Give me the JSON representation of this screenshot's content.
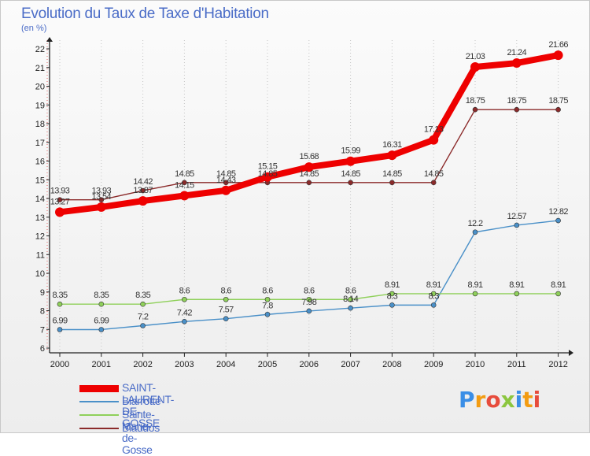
{
  "title": "Evolution du Taux de Taxe d'Habitation",
  "subtitle": "(en %)",
  "logo": {
    "text": "Proxiti",
    "letters": [
      "P",
      "r",
      "o",
      "x",
      "i",
      "t",
      "i"
    ],
    "colors": [
      "#3a8ee6",
      "#f39c12",
      "#e74c3c",
      "#8cc63f",
      "#3a8ee6",
      "#f39c12",
      "#e74c3c"
    ]
  },
  "chart_data": {
    "type": "line",
    "title": "Evolution du Taux de Taxe d'Habitation",
    "ylabel": "(en %)",
    "xlabel": "",
    "ylim": [
      6,
      22
    ],
    "yticks": [
      "6",
      "7",
      "8",
      "9",
      "10",
      "11",
      "12",
      "13",
      "14",
      "15",
      "16",
      "17",
      "18",
      "19",
      "20",
      "21",
      "22"
    ],
    "x": [
      "2000",
      "2001",
      "2002",
      "2003",
      "2004",
      "2005",
      "2006",
      "2007",
      "2008",
      "2009",
      "2010",
      "2011",
      "2012"
    ],
    "grid": "vertical dotted",
    "legend_position": "bottom-left",
    "series": [
      {
        "name": "SAINT-LAURENT-DE-GOSSE",
        "color": "#ee0000",
        "thick": true,
        "values": [
          13.27,
          13.54,
          13.87,
          14.15,
          14.43,
          15.15,
          15.68,
          15.99,
          16.31,
          17.13,
          21.03,
          21.24,
          21.66
        ],
        "labels": [
          "13.27",
          "13.54",
          "13.87",
          "14.15",
          "14.43",
          "15.15",
          "15.68",
          "15.99",
          "16.31",
          "17.13",
          "21.03",
          "21.24",
          "21.66"
        ]
      },
      {
        "name": "Biarrotte",
        "color": "#4a90c8",
        "thick": false,
        "values": [
          6.99,
          6.99,
          7.2,
          7.42,
          7.57,
          7.8,
          7.98,
          8.14,
          8.3,
          8.3,
          12.2,
          12.57,
          12.82
        ],
        "labels": [
          "6.99",
          "6.99",
          "7.2",
          "7.42",
          "7.57",
          "7.8",
          "7.98",
          "8.14",
          "8.3",
          "8.3",
          "12.2",
          "12.57",
          "12.82"
        ]
      },
      {
        "name": "Sainte-Marie-de-Gosse",
        "color": "#8fd05a",
        "thick": false,
        "values": [
          8.35,
          8.35,
          8.35,
          8.6,
          8.6,
          8.6,
          8.6,
          8.6,
          8.91,
          8.91,
          8.91,
          8.91,
          8.91
        ],
        "labels": [
          "8.35",
          "8.35",
          "8.35",
          "8.6",
          "8.6",
          "8.6",
          "8.6",
          "8.6",
          "8.91",
          "8.91",
          "8.91",
          "8.91",
          "8.91"
        ]
      },
      {
        "name": "Biaudos",
        "color": "#8b2a2a",
        "thick": false,
        "values": [
          13.93,
          13.93,
          14.42,
          14.85,
          14.85,
          14.85,
          14.85,
          14.85,
          14.85,
          14.85,
          18.75,
          18.75,
          18.75
        ],
        "labels": [
          "13.93",
          "13.93",
          "14.42",
          "14.85",
          "14.85",
          "14.85",
          "14.85",
          "14.85",
          "14.85",
          "14.85",
          "18.75",
          "18.75",
          "18.75"
        ]
      }
    ]
  }
}
